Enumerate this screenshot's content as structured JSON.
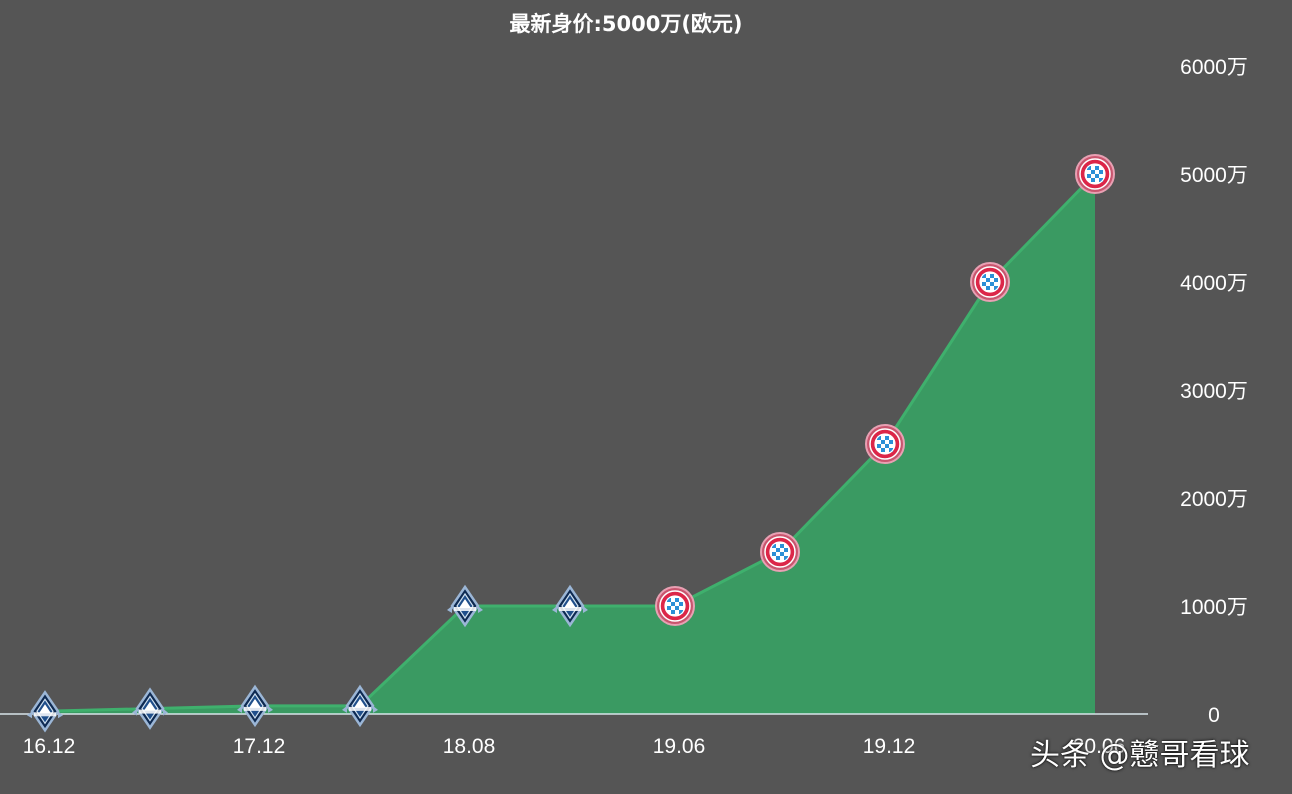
{
  "chart_data": {
    "type": "area",
    "title": "最新身价:5000万(欧元)",
    "x_tick_labels": [
      "16.12",
      "17.12",
      "18.08",
      "19.06",
      "19.12",
      "20.06"
    ],
    "y_tick_labels": [
      "0",
      "1000万",
      "2000万",
      "3000万",
      "4000万",
      "5000万",
      "6000万"
    ],
    "ylim": [
      0,
      6000
    ],
    "y_unit": "万欧元",
    "series": [
      {
        "values": [
          25,
          50,
          75,
          75,
          1000,
          1000,
          1000,
          1500,
          2500,
          4000,
          5000
        ],
        "clubs": [
          "vancouver",
          "vancouver",
          "vancouver",
          "vancouver",
          "vancouver",
          "vancouver",
          "bayern",
          "bayern",
          "bayern",
          "bayern",
          "bayern"
        ]
      }
    ],
    "colors": {
      "fill": "#3a9a62",
      "line": "#3fb06d",
      "axis": "#d8e4ea",
      "background": "#555555"
    },
    "legend": "none",
    "grid": false
  },
  "watermark": "头条 @戆哥看球"
}
